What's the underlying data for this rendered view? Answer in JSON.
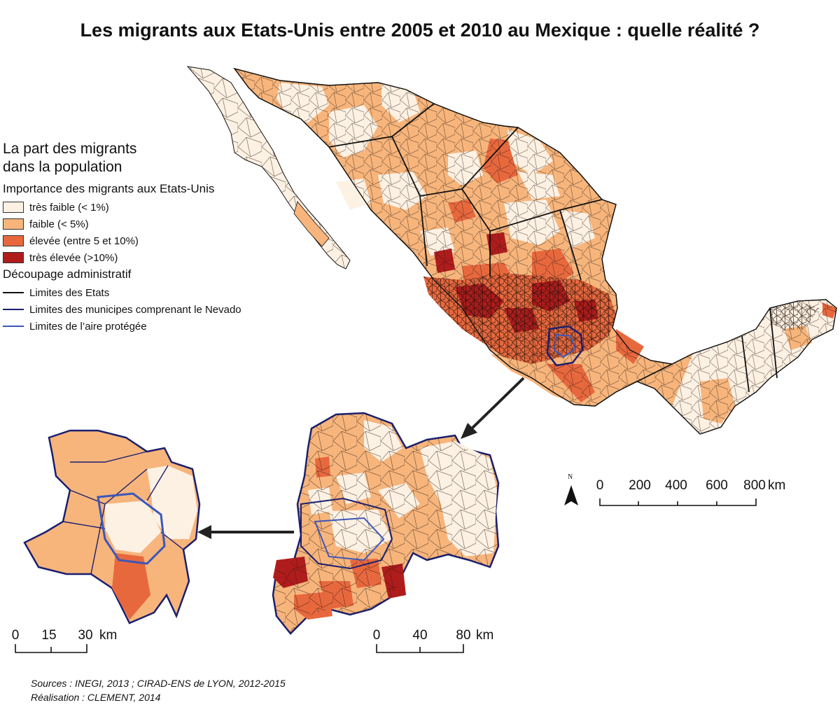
{
  "title": "Les migrants aux Etats-Unis entre 2005 et 2010 au Mexique : quelle réalité ?",
  "legend": {
    "title_line1": "La part des migrants",
    "title_line2": "dans la population",
    "section1": "Importance des migrants aux Etats-Unis",
    "classes": [
      {
        "label": "très faible (< 1%)",
        "color": "#fdf1e3"
      },
      {
        "label": "faible (< 5%)",
        "color": "#f7b57c"
      },
      {
        "label": "élevée (entre 5 et 10%)",
        "color": "#e8683e"
      },
      {
        "label": "très élevée (>10%)",
        "color": "#b01c1c"
      }
    ],
    "section2": "Découpage administratif",
    "lines": [
      {
        "label": "Limites des Etats",
        "color": "#111111"
      },
      {
        "label": "Limites des municipes comprenant le Nevado",
        "color": "#1a1f6e"
      },
      {
        "label": "Limites de l’aire protégée",
        "color": "#3b57b8"
      }
    ]
  },
  "north_label": "N",
  "scale_main": {
    "ticks": [
      "0",
      "200",
      "400",
      "600",
      "800"
    ],
    "unit": "km"
  },
  "scale_mid": {
    "ticks": [
      "0",
      "40",
      "80"
    ],
    "unit": "km"
  },
  "scale_small": {
    "ticks": [
      "0",
      "15",
      "30"
    ],
    "unit": "km"
  },
  "sources": {
    "line1": "Sources : INEGI, 2013 ; CIRAD-ENS de LYON, 2012-2015",
    "line2": "Réalisation : CLEMENT, 2014"
  }
}
